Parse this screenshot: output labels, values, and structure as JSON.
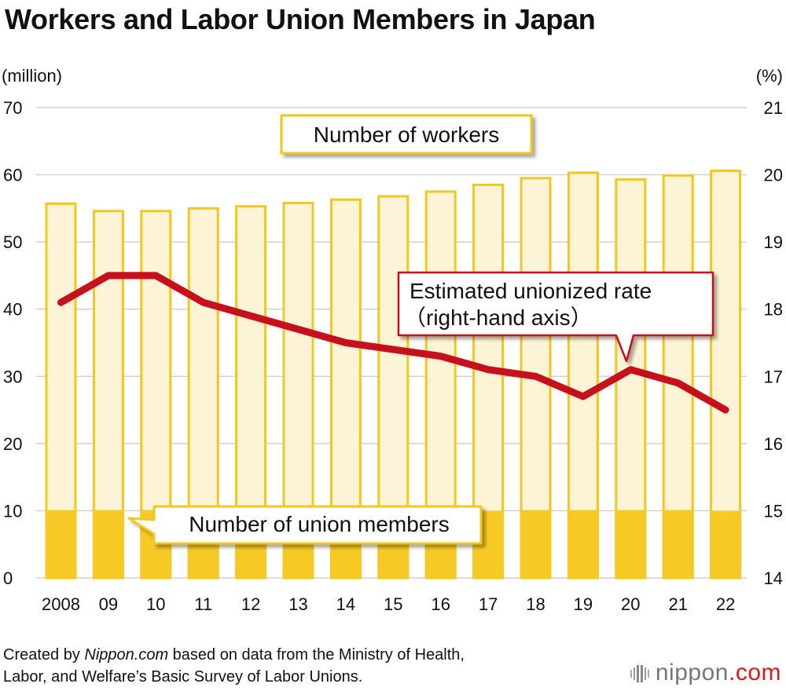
{
  "title": "Workers and Labor Union Members in Japan",
  "left_unit": "(million)",
  "right_unit": "(%)",
  "source": {
    "prefix": "Created by ",
    "site": "Nippon.com",
    "line1_rest": " based on data from the Ministry of Health,",
    "line2": "Labor, and Welfare’s Basic Survey of Labor Unions."
  },
  "logo": {
    "name": "nippon",
    "dot": ".",
    "tld": "com"
  },
  "colors": {
    "workers_fill": "#fdf3d6",
    "workers_stroke": "#f2c81d",
    "members_fill": "#f6c924",
    "rate_line": "#c8101d",
    "grid": "#c8c8c8",
    "callout_border_yellow": "#f2c81d",
    "callout_border_red": "#c8101d"
  },
  "chart_data": {
    "type": "bar",
    "categories": [
      "2008",
      "09",
      "10",
      "11",
      "12",
      "13",
      "14",
      "15",
      "16",
      "17",
      "18",
      "19",
      "20",
      "21",
      "22"
    ],
    "series": [
      {
        "name": "Number of workers",
        "type": "bar",
        "values": [
          55.7,
          54.6,
          54.6,
          55.0,
          55.3,
          55.8,
          56.3,
          56.8,
          57.5,
          58.5,
          59.5,
          60.3,
          59.3,
          59.9,
          60.6
        ]
      },
      {
        "name": "Number of union members",
        "type": "bar",
        "values": [
          10.1,
          10.1,
          10.1,
          10.0,
          9.9,
          9.9,
          9.8,
          9.9,
          9.9,
          10.0,
          10.1,
          10.1,
          10.1,
          10.1,
          10.0
        ]
      },
      {
        "name": "Estimated unionized rate",
        "type": "line",
        "axis": "right",
        "values": [
          18.1,
          18.5,
          18.5,
          18.1,
          17.9,
          17.7,
          17.5,
          17.4,
          17.3,
          17.1,
          17.0,
          16.7,
          17.1,
          16.9,
          16.5
        ]
      }
    ],
    "ylim": [
      0,
      70
    ],
    "y_ticks": [
      0,
      10,
      20,
      30,
      40,
      50,
      60,
      70
    ],
    "y2lim": [
      14,
      21
    ],
    "y2_ticks": [
      14,
      15,
      16,
      17,
      18,
      19,
      20,
      21
    ],
    "annotations": {
      "workers": "Number of workers",
      "members": "Number of union members",
      "rate_line1": "Estimated unionized rate",
      "rate_line2": "（right-hand axis）"
    },
    "grid": true
  }
}
